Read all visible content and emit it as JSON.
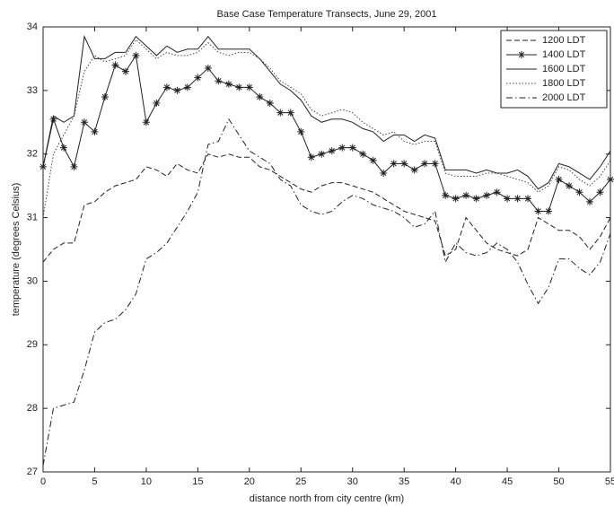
{
  "chart_data": {
    "type": "line",
    "title": "Base Case Temperature Transects, June 29, 2001",
    "x_label": "distance north from city centre (km)",
    "y_label": "temperature (degrees Celsius)",
    "x": [
      0,
      1,
      2,
      3,
      4,
      5,
      6,
      7,
      8,
      9,
      10,
      11,
      12,
      13,
      14,
      15,
      16,
      17,
      18,
      19,
      20,
      21,
      22,
      23,
      24,
      25,
      26,
      27,
      28,
      29,
      30,
      31,
      32,
      33,
      34,
      35,
      36,
      37,
      38,
      39,
      40,
      41,
      42,
      43,
      44,
      45,
      46,
      47,
      48,
      49,
      50,
      51,
      52,
      53,
      54,
      55
    ],
    "xlim": [
      0,
      55
    ],
    "xticks": [
      0,
      5,
      10,
      15,
      20,
      25,
      30,
      35,
      40,
      45,
      50,
      55
    ],
    "ylim": [
      27,
      34
    ],
    "yticks": [
      27,
      28,
      29,
      30,
      31,
      32,
      33,
      34
    ],
    "grid": false,
    "legend": "upper right",
    "series": [
      {
        "name": "1200 LDT",
        "color": "#222222",
        "line_style": "dashed",
        "values": [
          30.3,
          30.5,
          30.6,
          30.6,
          31.2,
          31.25,
          31.4,
          31.5,
          31.55,
          31.6,
          31.8,
          31.75,
          31.65,
          31.85,
          31.75,
          31.7,
          32.0,
          31.95,
          32.0,
          31.95,
          31.95,
          31.8,
          31.75,
          31.65,
          31.55,
          31.45,
          31.4,
          31.5,
          31.55,
          31.55,
          31.5,
          31.45,
          31.4,
          31.3,
          31.2,
          31.1,
          31.05,
          31.0,
          30.95,
          30.4,
          30.5,
          31.0,
          30.8,
          30.6,
          30.5,
          30.45,
          30.4,
          30.5,
          31.0,
          30.9,
          30.8,
          30.8,
          30.7,
          30.5,
          30.7,
          31.0
        ]
      },
      {
        "name": "1400 LDT",
        "color": "#222222",
        "line_style": "solid",
        "marker": "star",
        "values": [
          31.8,
          32.55,
          32.1,
          31.8,
          32.5,
          32.35,
          32.9,
          33.4,
          33.3,
          33.55,
          32.5,
          32.8,
          33.05,
          33.0,
          33.05,
          33.2,
          33.35,
          33.15,
          33.1,
          33.05,
          33.05,
          32.9,
          32.8,
          32.65,
          32.65,
          32.35,
          31.95,
          32.0,
          32.05,
          32.1,
          32.1,
          32.0,
          31.9,
          31.7,
          31.85,
          31.85,
          31.75,
          31.85,
          31.85,
          31.35,
          31.3,
          31.35,
          31.3,
          31.35,
          31.4,
          31.3,
          31.3,
          31.3,
          31.1,
          31.1,
          31.6,
          31.5,
          31.4,
          31.25,
          31.4,
          31.6
        ]
      },
      {
        "name": "1600 LDT",
        "color": "#222222",
        "line_style": "solid",
        "values": [
          31.8,
          32.6,
          32.5,
          32.6,
          33.85,
          33.5,
          33.5,
          33.6,
          33.6,
          33.85,
          33.7,
          33.55,
          33.7,
          33.6,
          33.65,
          33.65,
          33.85,
          33.65,
          33.65,
          33.65,
          33.65,
          33.5,
          33.3,
          33.1,
          33.0,
          32.85,
          32.6,
          32.5,
          32.55,
          32.55,
          32.5,
          32.4,
          32.35,
          32.2,
          32.3,
          32.3,
          32.2,
          32.3,
          32.25,
          31.75,
          31.75,
          31.75,
          31.7,
          31.75,
          31.7,
          31.7,
          31.75,
          31.65,
          31.45,
          31.55,
          31.85,
          31.8,
          31.7,
          31.6,
          31.8,
          32.05
        ]
      },
      {
        "name": "1800 LDT",
        "color": "#444444",
        "line_style": "dotted",
        "values": [
          31.0,
          32.0,
          32.3,
          32.6,
          33.3,
          33.55,
          33.45,
          33.5,
          33.55,
          33.8,
          33.65,
          33.5,
          33.6,
          33.55,
          33.55,
          33.6,
          33.75,
          33.6,
          33.55,
          33.6,
          33.6,
          33.5,
          33.35,
          33.15,
          33.05,
          32.95,
          32.7,
          32.6,
          32.65,
          32.7,
          32.65,
          32.5,
          32.4,
          32.3,
          32.35,
          32.2,
          32.15,
          32.2,
          32.2,
          31.7,
          31.65,
          31.65,
          31.65,
          31.7,
          31.7,
          31.65,
          31.6,
          31.55,
          31.4,
          31.5,
          31.8,
          31.75,
          31.6,
          31.5,
          31.65,
          31.9
        ]
      },
      {
        "name": "2000 LDT",
        "color": "#222222",
        "line_style": "dashdot",
        "values": [
          27.1,
          28.0,
          28.05,
          28.1,
          28.6,
          29.2,
          29.35,
          29.4,
          29.55,
          29.8,
          30.35,
          30.45,
          30.6,
          30.85,
          31.1,
          31.4,
          32.15,
          32.2,
          32.55,
          32.3,
          32.05,
          31.95,
          31.85,
          31.6,
          31.5,
          31.2,
          31.1,
          31.05,
          31.1,
          31.25,
          31.35,
          31.3,
          31.2,
          31.15,
          31.1,
          31.0,
          30.85,
          30.9,
          31.1,
          30.3,
          30.6,
          30.45,
          30.4,
          30.45,
          30.6,
          30.5,
          30.3,
          29.95,
          29.65,
          29.9,
          30.35,
          30.35,
          30.2,
          30.1,
          30.3,
          30.75
        ]
      }
    ]
  }
}
